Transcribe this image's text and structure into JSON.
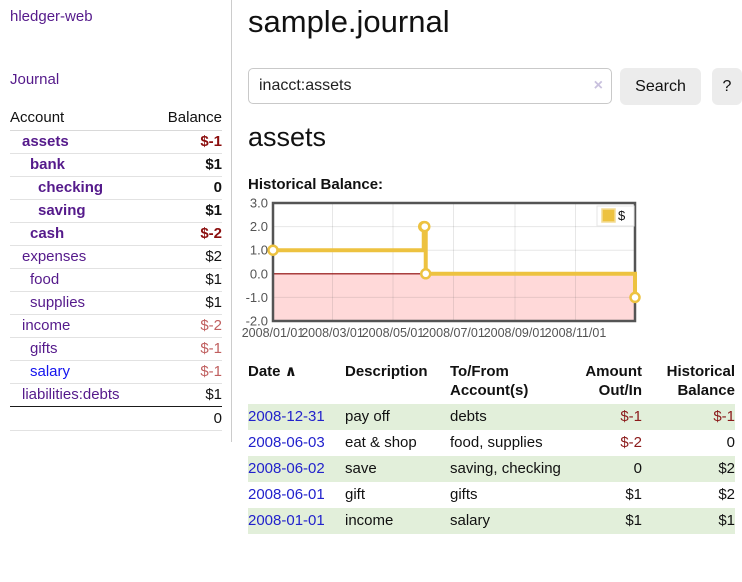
{
  "app": {
    "brand": "hledger-web",
    "nav_journal": "Journal"
  },
  "sidebar": {
    "header_account": "Account",
    "header_balance": "Balance",
    "accounts": [
      {
        "name": "assets",
        "indent": 1,
        "bold": true,
        "balance": "$-1",
        "balance_style": "neg-strong",
        "link": "purple"
      },
      {
        "name": "bank",
        "indent": 2,
        "bold": true,
        "balance": "$1",
        "balance_style": "pos-strong",
        "link": "purple"
      },
      {
        "name": "checking",
        "indent": 3,
        "bold": true,
        "balance": "0",
        "balance_style": "pos-strong",
        "link": "purple"
      },
      {
        "name": "saving",
        "indent": 3,
        "bold": true,
        "balance": "$1",
        "balance_style": "pos-strong",
        "link": "purple"
      },
      {
        "name": "cash",
        "indent": 2,
        "bold": true,
        "balance": "$-2",
        "balance_style": "neg-strong",
        "link": "purple"
      },
      {
        "name": "expenses",
        "indent": 1,
        "bold": false,
        "balance": "$2",
        "balance_style": "pos",
        "link": "purple"
      },
      {
        "name": "food",
        "indent": 2,
        "bold": false,
        "balance": "$1",
        "balance_style": "pos",
        "link": "purple"
      },
      {
        "name": "supplies",
        "indent": 2,
        "bold": false,
        "balance": "$1",
        "balance_style": "pos",
        "link": "purple"
      },
      {
        "name": "income",
        "indent": 1,
        "bold": false,
        "balance": "$-2",
        "balance_style": "neg-muted",
        "link": "purple"
      },
      {
        "name": "gifts",
        "indent": 2,
        "bold": false,
        "balance": "$-1",
        "balance_style": "neg-muted",
        "link": "purple"
      },
      {
        "name": "salary",
        "indent": 2,
        "bold": false,
        "balance": "$-1",
        "balance_style": "neg-muted",
        "link": "blue"
      },
      {
        "name": "liabilities:debts",
        "indent": 1,
        "bold": false,
        "balance": "$1",
        "balance_style": "pos",
        "link": "purple"
      }
    ],
    "total": "0"
  },
  "header": {
    "title": "sample.journal"
  },
  "search": {
    "value": "inacct:assets",
    "clear_icon": "×",
    "button_label": "Search",
    "help_label": "?"
  },
  "account_page": {
    "heading": "assets",
    "chart_title": "Historical Balance:"
  },
  "chart_data": {
    "type": "line",
    "step": true,
    "title": "Historical Balance",
    "series": [
      {
        "name": "$",
        "color": "#EDC240",
        "points": [
          {
            "date": "2008-01-01",
            "value": 1
          },
          {
            "date": "2008-06-01",
            "value": 2
          },
          {
            "date": "2008-06-02",
            "value": 2
          },
          {
            "date": "2008-06-03",
            "value": 0
          },
          {
            "date": "2008-12-31",
            "value": -1
          }
        ]
      }
    ],
    "x_ticks": [
      "2008/01/01",
      "2008/03/01",
      "2008/05/01",
      "2008/07/01",
      "2008/09/01",
      "2008/11/01"
    ],
    "y_ticks": [
      "3.0",
      "2.0",
      "1.0",
      "0.0",
      "-1.0",
      "-2.0"
    ],
    "ylim": [
      -2,
      3
    ],
    "x_start": "2008-01-01",
    "x_end": "2008-12-31",
    "legend": {
      "label": "$",
      "position": "top-right"
    },
    "grid": true,
    "negative_region_color": "#FFD9D9",
    "zero_line_color": "#8B0000",
    "border_color": "#545454",
    "tick_label_color": "#545454"
  },
  "register": {
    "columns": [
      {
        "label": "Date",
        "sortable": true
      },
      {
        "label": "Description"
      },
      {
        "label": "To/From Account(s)"
      },
      {
        "label": "Amount Out/In",
        "align": "right"
      },
      {
        "label": "Historical Balance",
        "align": "right"
      }
    ],
    "sort_icon": "∧",
    "rows": [
      {
        "date": "2008-12-31",
        "description": "pay off",
        "accounts": "debts",
        "amount": "$-1",
        "amount_neg": true,
        "balance": "$-1",
        "balance_neg": true
      },
      {
        "date": "2008-06-03",
        "description": "eat & shop",
        "accounts": "food, supplies",
        "amount": "$-2",
        "amount_neg": true,
        "balance": "0",
        "balance_neg": false
      },
      {
        "date": "2008-06-02",
        "description": "save",
        "accounts": "saving, checking",
        "amount": "0",
        "amount_neg": false,
        "balance": "$2",
        "balance_neg": false
      },
      {
        "date": "2008-06-01",
        "description": "gift",
        "accounts": "gifts",
        "amount": "$1",
        "amount_neg": false,
        "balance": "$2",
        "balance_neg": false
      },
      {
        "date": "2008-01-01",
        "description": "income",
        "accounts": "salary",
        "amount": "$1",
        "amount_neg": false,
        "balance": "$1",
        "balance_neg": false
      }
    ]
  },
  "colors": {
    "link_purple": "#551A8B",
    "link_blue": "#1414EE",
    "date_link_blue": "#2222CC",
    "negative_strong": "#8B0E0E",
    "negative_muted": "#C05F5F",
    "table_stripe_green": "#E2EFDA",
    "chart_line_gold": "#EDC240"
  }
}
